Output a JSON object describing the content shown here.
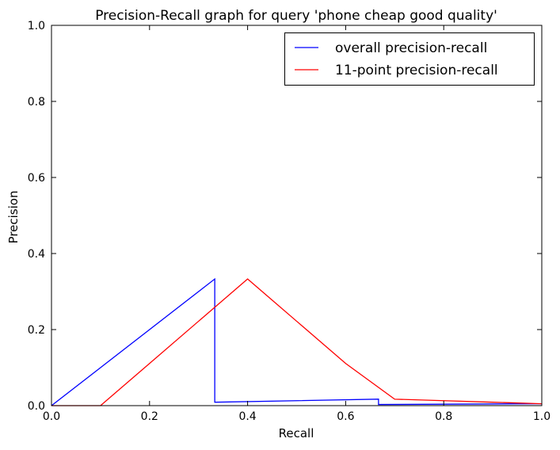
{
  "chart_data": {
    "type": "line",
    "title": "Precision-Recall graph for query 'phone cheap good quality'",
    "xlabel": "Recall",
    "ylabel": "Precision",
    "xlim": [
      0.0,
      1.0
    ],
    "ylim": [
      0.0,
      1.0
    ],
    "xticks": [
      "0.0",
      "0.2",
      "0.4",
      "0.6",
      "0.8",
      "1.0"
    ],
    "yticks": [
      "0.0",
      "0.2",
      "0.4",
      "0.6",
      "0.8",
      "1.0"
    ],
    "grid": false,
    "legend_placement": "top-right",
    "series": [
      {
        "name": "overall precision-recall",
        "color": "#0000ff",
        "points": [
          [
            0.0,
            0.0
          ],
          [
            0.333,
            0.333
          ],
          [
            0.333,
            0.009
          ],
          [
            0.667,
            0.017
          ],
          [
            0.667,
            0.003
          ],
          [
            1.0,
            0.005
          ]
        ]
      },
      {
        "name": "11-point precision-recall",
        "color": "#ff0000",
        "points": [
          [
            0.0,
            0.0
          ],
          [
            0.1,
            0.0
          ],
          [
            0.2,
            0.111
          ],
          [
            0.3,
            0.222
          ],
          [
            0.4,
            0.333
          ],
          [
            0.5,
            0.222
          ],
          [
            0.6,
            0.111
          ],
          [
            0.7,
            0.017
          ],
          [
            0.8,
            0.013
          ],
          [
            0.9,
            0.009
          ],
          [
            1.0,
            0.005
          ]
        ]
      }
    ]
  }
}
